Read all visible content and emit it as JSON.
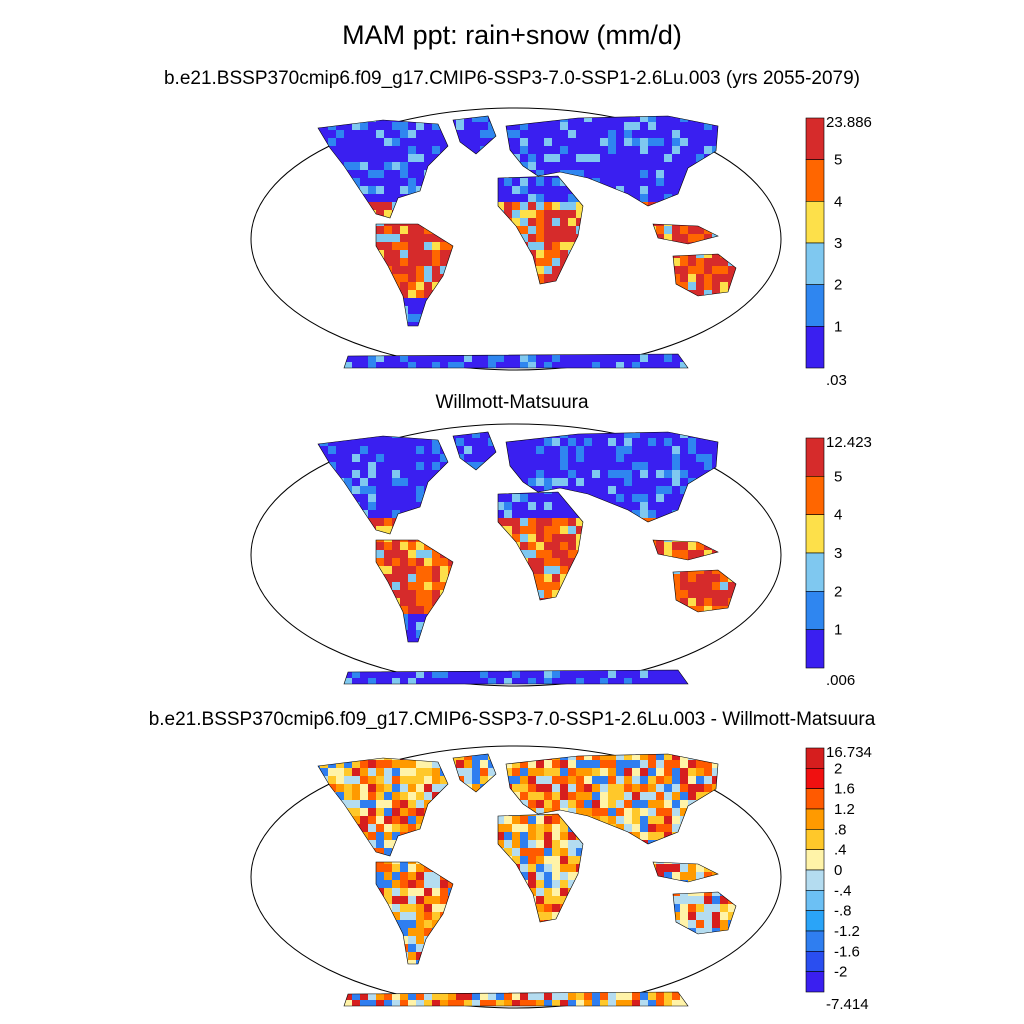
{
  "figure": {
    "title": "MAM ppt: rain+snow (mm/d)"
  },
  "panels": [
    {
      "title": "b.e21.BSSP370cmip6.f09_g17.CMIP6-SSP3-7.0-SSP1-2.6Lu.003 (yrs 2055-2079)",
      "colorbar": {
        "labels": [
          "23.886",
          "5",
          "4",
          "3",
          "2",
          "1",
          ".03"
        ],
        "colors": [
          "#d62b2b",
          "#ff6600",
          "#fde04a",
          "#7fc8f0",
          "#2f86f0",
          "#3a1ff0"
        ]
      }
    },
    {
      "title": "Willmott-Matsuura",
      "colorbar": {
        "labels": [
          "12.423",
          "5",
          "4",
          "3",
          "2",
          "1",
          ".006"
        ],
        "colors": [
          "#d62b2b",
          "#ff6600",
          "#fde04a",
          "#7fc8f0",
          "#2f86f0",
          "#3a1ff0"
        ]
      }
    },
    {
      "title": "b.e21.BSSP370cmip6.f09_g17.CMIP6-SSP3-7.0-SSP1-2.6Lu.003 - Willmott-Matsuura",
      "colorbar": {
        "labels": [
          "16.734",
          "2",
          "1.6",
          "1.2",
          ".8",
          ".4",
          "0",
          "-.4",
          "-.8",
          "-1.2",
          "-1.6",
          "-2",
          "-7.414"
        ],
        "colors": [
          "#d61e1e",
          "#f01010",
          "#ff5a00",
          "#ff9a00",
          "#ffc82a",
          "#fff3a8",
          "#b4dcf0",
          "#6cc0f4",
          "#2aa4f8",
          "#2f7ef0",
          "#2a4ef0",
          "#3a1ff0"
        ]
      }
    }
  ]
}
